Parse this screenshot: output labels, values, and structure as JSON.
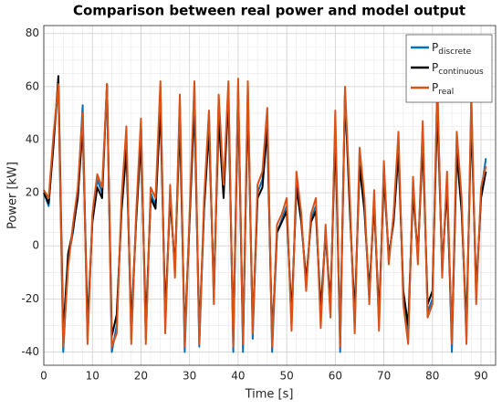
{
  "chart_data": {
    "type": "line",
    "title": "Comparison between real power and model output",
    "xlabel": "Time [s]",
    "ylabel": "Power [kW]",
    "x": [
      0,
      1,
      2,
      3,
      4,
      5,
      6,
      7,
      8,
      9,
      10,
      11,
      12,
      13,
      14,
      15,
      16,
      17,
      18,
      19,
      20,
      21,
      22,
      23,
      24,
      25,
      26,
      27,
      28,
      29,
      30,
      31,
      32,
      33,
      34,
      35,
      36,
      37,
      38,
      39,
      40,
      41,
      42,
      43,
      44,
      45,
      46,
      47,
      48,
      49,
      50,
      51,
      52,
      53,
      54,
      55,
      56,
      57,
      58,
      59,
      60,
      61,
      62,
      63,
      64,
      65,
      66,
      67,
      68,
      69,
      70,
      71,
      72,
      73,
      74,
      75,
      76,
      77,
      78,
      79,
      80,
      81,
      82,
      83,
      84,
      85,
      86,
      87,
      88,
      89,
      90,
      91
    ],
    "series": [
      {
        "name": "P_discrete",
        "color": "#0072bd",
        "values": [
          20,
          15,
          40,
          60,
          -40,
          -5,
          5,
          20,
          53,
          -35,
          10,
          25,
          20,
          60,
          -40,
          -30,
          15,
          40,
          -35,
          10,
          46,
          -35,
          20,
          15,
          60,
          -30,
          20,
          -10,
          55,
          -40,
          10,
          60,
          -38,
          15,
          50,
          -20,
          55,
          20,
          60,
          -40,
          60,
          -40,
          60,
          -35,
          20,
          25,
          50,
          -40,
          5,
          10,
          15,
          -30,
          25,
          10,
          -15,
          10,
          15,
          -28,
          5,
          -25,
          48,
          -40,
          58,
          15,
          -30,
          35,
          15,
          -20,
          18,
          -30,
          30,
          -5,
          10,
          40,
          -20,
          -35,
          23,
          -5,
          45,
          -25,
          -20,
          60,
          -10,
          25,
          -40,
          40,
          15,
          -35,
          55,
          -20,
          20,
          33
        ]
      },
      {
        "name": "P_continuous",
        "color": "#000000",
        "values": [
          20,
          16,
          38,
          64,
          -33,
          -3,
          6,
          18,
          45,
          -30,
          9,
          22,
          18,
          61,
          -34,
          -26,
          13,
          36,
          -30,
          9,
          40,
          -30,
          18,
          14,
          52,
          -26,
          18,
          -8,
          47,
          -34,
          9,
          53,
          -33,
          14,
          44,
          -17,
          48,
          18,
          56,
          -35,
          58,
          -35,
          55,
          -30,
          18,
          22,
          44,
          -35,
          5,
          9,
          13,
          -26,
          22,
          9,
          -13,
          9,
          13,
          -24,
          5,
          -22,
          42,
          -35,
          57,
          13,
          -26,
          30,
          13,
          -17,
          16,
          -26,
          26,
          -4,
          9,
          35,
          -17,
          -30,
          20,
          -4,
          39,
          -22,
          -17,
          52,
          -8,
          22,
          -35,
          35,
          13,
          -30,
          48,
          -17,
          18,
          28
        ]
      },
      {
        "name": "P_real",
        "color": "#d95319",
        "values": [
          21,
          18,
          42,
          61,
          -38,
          -8,
          8,
          22,
          50,
          -37,
          12,
          27,
          22,
          61,
          -38,
          -33,
          18,
          45,
          -37,
          12,
          48,
          -37,
          22,
          18,
          62,
          -33,
          23,
          -12,
          57,
          -38,
          12,
          62,
          -37,
          18,
          51,
          -22,
          57,
          23,
          62,
          -38,
          63,
          -37,
          62,
          -33,
          23,
          28,
          52,
          -38,
          8,
          12,
          18,
          -32,
          28,
          12,
          -17,
          12,
          18,
          -31,
          8,
          -27,
          51,
          -38,
          60,
          18,
          -33,
          37,
          18,
          -22,
          21,
          -32,
          32,
          -7,
          12,
          43,
          -22,
          -37,
          26,
          -7,
          47,
          -27,
          -22,
          62,
          -12,
          28,
          -37,
          43,
          18,
          -37,
          57,
          -22,
          22,
          30
        ]
      }
    ],
    "xlim": [
      0,
      93
    ],
    "ylim": [
      -45,
      83
    ],
    "xticks": [
      0,
      10,
      20,
      30,
      40,
      50,
      60,
      70,
      80,
      90
    ],
    "yticks": [
      -40,
      -20,
      0,
      20,
      40,
      60,
      80
    ],
    "grid": true,
    "minor_grid": true,
    "legend": "northeast"
  }
}
